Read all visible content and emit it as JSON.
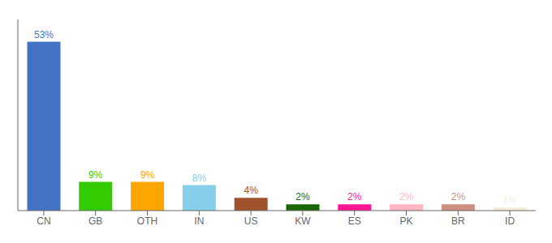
{
  "chart_data": {
    "type": "bar",
    "categories": [
      "CN",
      "GB",
      "OTH",
      "IN",
      "US",
      "KW",
      "ES",
      "PK",
      "BR",
      "ID"
    ],
    "values": [
      53,
      9,
      9,
      8,
      4,
      2,
      2,
      2,
      2,
      1
    ],
    "value_labels": [
      "53%",
      "9%",
      "9%",
      "8%",
      "4%",
      "2%",
      "2%",
      "2%",
      "2%",
      "1%"
    ],
    "colors": [
      "#4472C4",
      "#33CC00",
      "#FFA500",
      "#87CEEB",
      "#A0522D",
      "#1A6600",
      "#FF1493",
      "#FFB6C1",
      "#CD9080",
      "#F5F0DC"
    ],
    "ylim": [
      0,
      60
    ],
    "data_labels": true,
    "tick_labels": "x"
  }
}
